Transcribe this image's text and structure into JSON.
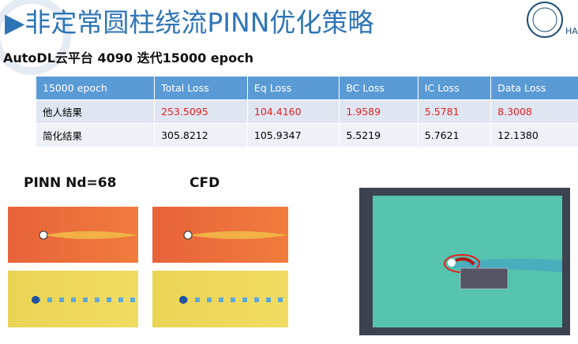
{
  "header": {
    "title": "▶非定常圆柱绕流PINN优化策略",
    "subtitle": "AutoDL云平台  4090 迭代15000 epoch",
    "logo_text": "HA"
  },
  "table": {
    "columns": [
      "15000 epoch",
      "Total Loss",
      "Eq Loss",
      "BC Loss",
      "IC Loss",
      "Data Loss"
    ],
    "rows": [
      [
        "他人结果",
        "253.5095",
        "104.4160",
        "1.9589",
        "5.5781",
        "8.3008"
      ],
      [
        "简化结果",
        "305.8212",
        "105.9347",
        "5.5219",
        "5.7621",
        "12.1380"
      ]
    ]
  },
  "figures": {
    "pinn_label": "PINN Nd=68",
    "cfd_label": "CFD"
  }
}
